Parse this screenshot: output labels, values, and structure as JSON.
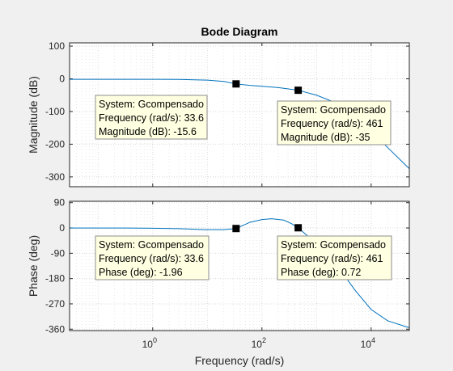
{
  "chart_data": {
    "type": "line",
    "title": "Bode Diagram",
    "xlabel": "Frequency  (rad/s)",
    "x_scale": "log",
    "xlim": [
      0.03,
      50000
    ],
    "x_ticks": [
      {
        "value": 1,
        "label_base": "10",
        "label_exp": "0"
      },
      {
        "value": 100,
        "label_base": "10",
        "label_exp": "2"
      },
      {
        "value": 10000,
        "label_base": "10",
        "label_exp": "4"
      }
    ],
    "grid": true,
    "series_color": "#0072bd",
    "panels": [
      {
        "id": "magnitude",
        "ylabel": "Magnitude (dB)",
        "ylim": [
          -330,
          110
        ],
        "yticks": [
          100,
          0,
          -100,
          -200,
          -300
        ],
        "series": [
          {
            "x": [
              0.03,
              0.3,
              1,
              3,
              10,
              20,
              33.6,
              60,
              100,
              200,
              461,
              1000,
              2000,
              5000,
              10000,
              20000,
              50000
            ],
            "y": [
              -1.5,
              -1.5,
              -1.6,
              -2,
              -4,
              -8,
              -15.6,
              -20,
              -23,
              -27,
              -35,
              -50,
              -70,
              -110,
              -160,
              -210,
              -275
            ]
          }
        ],
        "datatips": [
          {
            "x": 33.6,
            "y": -15.6,
            "lines": [
              "System: Gcompensado",
              "Frequency (rad/s): 33.6",
              "Magnitude (dB): -15.6"
            ]
          },
          {
            "x": 461,
            "y": -35,
            "lines": [
              "System: Gcompensado",
              "Frequency (rad/s): 461",
              "Magnitude (dB): -35"
            ]
          }
        ]
      },
      {
        "id": "phase",
        "ylabel": "Phase (deg)",
        "ylim": [
          -365,
          95
        ],
        "yticks": [
          90,
          0,
          -90,
          -180,
          -270,
          -360
        ],
        "series": [
          {
            "x": [
              0.03,
              0.3,
              1,
              3,
              10,
              20,
              33.6,
              60,
              100,
              150,
              250,
              350,
              461,
              700,
              1000,
              2000,
              3000,
              5000,
              10000,
              20000,
              50000
            ],
            "y": [
              -0.1,
              -0.3,
              -0.9,
              -2.5,
              -6,
              -6,
              -1.96,
              20,
              30,
              33,
              28,
              15,
              0.72,
              -30,
              -60,
              -110,
              -160,
              -220,
              -290,
              -330,
              -355
            ]
          }
        ],
        "datatips": [
          {
            "x": 33.6,
            "y": -1.96,
            "lines": [
              "System: Gcompensado",
              "Frequency (rad/s): 33.6",
              "Phase (deg): -1.96"
            ]
          },
          {
            "x": 461,
            "y": 0.72,
            "lines": [
              "System: Gcompensado",
              "Frequency (rad/s): 461",
              "Phase (deg): 0.72"
            ]
          }
        ]
      }
    ]
  }
}
